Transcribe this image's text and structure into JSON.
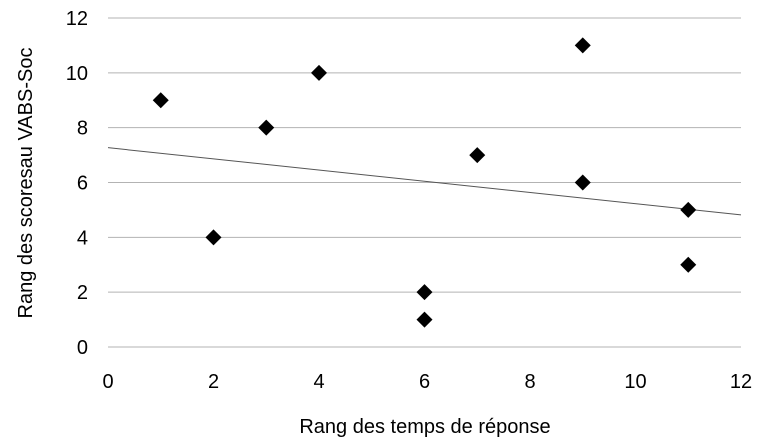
{
  "chart_data": {
    "type": "scatter",
    "title": "",
    "xlabel": "Rang des temps de réponse",
    "ylabel": "Rang des scoresau VABS-Soc",
    "xlim": [
      0,
      12
    ],
    "ylim": [
      0,
      12
    ],
    "x_ticks": [
      "0",
      "2",
      "4",
      "6",
      "8",
      "10",
      "12"
    ],
    "y_ticks": [
      "0",
      "2",
      "4",
      "6",
      "8",
      "10",
      "12"
    ],
    "grid": "horizontal",
    "series": [
      {
        "marker": "diamond",
        "color": "#000000",
        "points": [
          {
            "x": 1,
            "y": 9
          },
          {
            "x": 2,
            "y": 4
          },
          {
            "x": 3,
            "y": 8
          },
          {
            "x": 4,
            "y": 10
          },
          {
            "x": 6,
            "y": 2
          },
          {
            "x": 6,
            "y": 1
          },
          {
            "x": 7,
            "y": 7
          },
          {
            "x": 9,
            "y": 11
          },
          {
            "x": 9,
            "y": 6
          },
          {
            "x": 11,
            "y": 5
          },
          {
            "x": 11,
            "y": 3
          }
        ]
      }
    ],
    "trendline": {
      "type": "linear",
      "color": "#555555",
      "y_at_x0": 7.27,
      "y_at_x12": 4.82
    }
  }
}
